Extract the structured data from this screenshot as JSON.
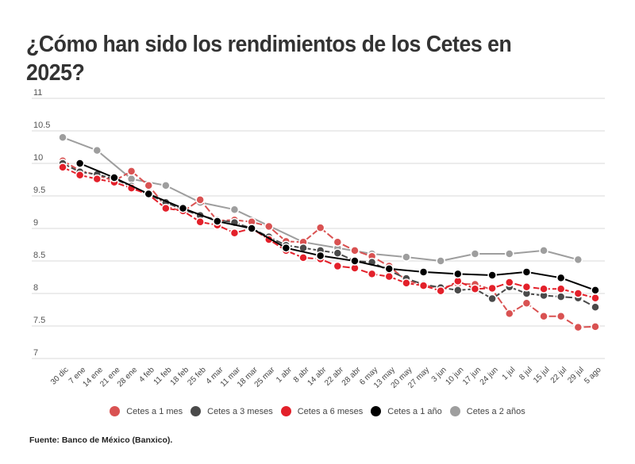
{
  "title": "¿Cómo han sido los rendimientos de los Cetes en 2025?",
  "source": "Fuente: Banco de México (Banxico).",
  "chart_data": {
    "type": "line",
    "title": "¿Cómo han sido los rendimientos de los Cetes en 2025?",
    "xlabel": "",
    "ylabel": "",
    "ylim": [
      7,
      11
    ],
    "yticks": [
      11,
      10.5,
      10,
      9.5,
      9,
      8.5,
      8,
      7.5,
      7
    ],
    "ytick_labels": [
      "11",
      "10.5",
      "10",
      "9.5",
      "9",
      "8.5",
      "8",
      "7.5",
      "7"
    ],
    "grid": "horizontal",
    "legend_position": "bottom",
    "categories": [
      "30 dic",
      "7 ene",
      "14 ene",
      "21 ene",
      "28 ene",
      "4 feb",
      "11 feb",
      "18 feb",
      "25 feb",
      "4 mar",
      "11 mar",
      "18 mar",
      "25 mar",
      "1 abr",
      "8 abr",
      "14 abr",
      "22 abr",
      "28 abr",
      "6 may",
      "13 may",
      "20 may",
      "27 may",
      "3 jun",
      "10 jun",
      "17 jun",
      "24 jun",
      "1 jul",
      "8 jul",
      "15 jul",
      "22 jul",
      "29 jul",
      "5 ago"
    ],
    "series": [
      {
        "name": "Cetes a 2 años",
        "color": "#9e9e9e",
        "dashed": false,
        "values": [
          10.4,
          null,
          10.2,
          null,
          9.76,
          null,
          9.66,
          null,
          9.4,
          null,
          9.29,
          null,
          9.04,
          null,
          8.79,
          null,
          8.7,
          null,
          8.61,
          null,
          8.56,
          null,
          8.5,
          null,
          8.61,
          null,
          8.61,
          null,
          8.66,
          null,
          8.52,
          null
        ]
      },
      {
        "name": "Cetes a 1 mes",
        "color": "#d95252",
        "dashed": true,
        "values": [
          10.04,
          9.89,
          9.82,
          9.73,
          9.88,
          9.66,
          9.34,
          9.26,
          9.44,
          9.12,
          9.13,
          9.1,
          9.03,
          8.8,
          8.79,
          9.01,
          8.79,
          8.66,
          8.57,
          8.42,
          8.2,
          8.13,
          8.08,
          8.15,
          8.14,
          8.06,
          7.69,
          7.85,
          7.65,
          7.65,
          7.48,
          7.49
        ]
      },
      {
        "name": "Cetes a 3 meses",
        "color": "#4a4a4a",
        "dashed": true,
        "values": [
          10.0,
          9.87,
          9.83,
          9.76,
          9.65,
          9.52,
          9.4,
          9.29,
          9.2,
          9.13,
          9.09,
          9.0,
          8.87,
          8.74,
          8.7,
          8.66,
          8.62,
          8.5,
          8.48,
          8.35,
          8.23,
          8.14,
          8.09,
          8.05,
          8.07,
          7.92,
          8.1,
          8.0,
          7.97,
          7.95,
          7.93,
          7.79
        ]
      },
      {
        "name": "Cetes a 6 meses",
        "color": "#e3202a",
        "dashed": true,
        "values": [
          9.94,
          9.82,
          9.76,
          9.71,
          9.62,
          9.52,
          9.31,
          9.27,
          9.1,
          9.05,
          8.93,
          9.0,
          8.83,
          8.66,
          8.55,
          8.53,
          8.42,
          8.39,
          8.3,
          8.26,
          8.16,
          8.12,
          8.04,
          8.19,
          8.07,
          8.08,
          8.17,
          8.1,
          8.07,
          8.07,
          8.0,
          7.93
        ]
      },
      {
        "name": "Cetes a 1 año",
        "color": "#000000",
        "dashed": false,
        "values": [
          null,
          10.0,
          null,
          9.78,
          null,
          9.53,
          null,
          9.31,
          null,
          9.11,
          null,
          9.0,
          null,
          8.7,
          null,
          8.58,
          null,
          8.5,
          null,
          8.38,
          null,
          8.33,
          null,
          8.3,
          null,
          8.28,
          null,
          8.33,
          null,
          8.24,
          null,
          8.05
        ]
      }
    ],
    "legend": [
      "Cetes a 1 mes",
      "Cetes a 3 meses",
      "Cetes a 6 meses",
      "Cetes a 1 año",
      "Cetes a 2 años"
    ]
  }
}
